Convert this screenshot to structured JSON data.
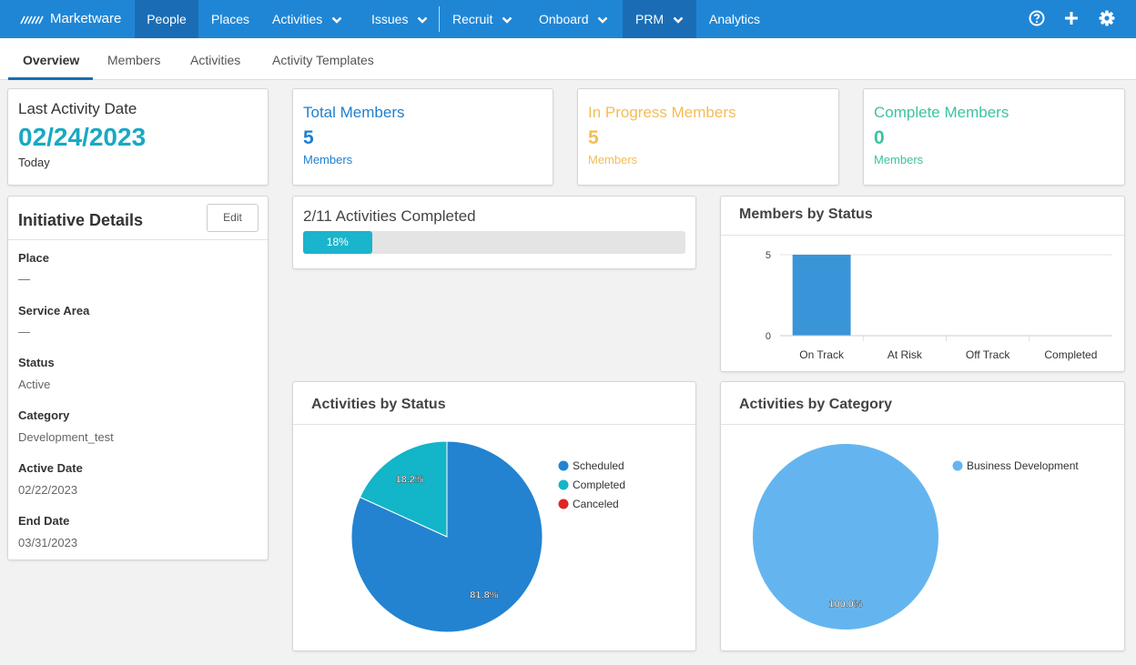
{
  "nav": {
    "logo": "Marketware",
    "items": [
      {
        "label": "People"
      },
      {
        "label": "Places"
      },
      {
        "label": "Activities"
      },
      {
        "label": "Issues"
      },
      {
        "label": "Recruit"
      },
      {
        "label": "Onboard"
      },
      {
        "label": "PRM"
      },
      {
        "label": "Analytics"
      }
    ],
    "icons": [
      "help-icon",
      "plus-icon",
      "gear-icon"
    ]
  },
  "tabs": [
    {
      "label": "Overview"
    },
    {
      "label": "Members"
    },
    {
      "label": "Activities"
    },
    {
      "label": "Activity Templates"
    }
  ],
  "last_activity": {
    "title": "Last Activity Date",
    "date": "02/24/2023",
    "sub": "Today"
  },
  "stats": [
    {
      "title": "Total Members",
      "value": "5",
      "sub": "Members",
      "color": "#1f7fcf"
    },
    {
      "title": "In Progress Members",
      "value": "5",
      "sub": "Members",
      "color": "#f5bc55"
    },
    {
      "title": "Complete Members",
      "value": "0",
      "sub": "Members",
      "color": "#3cc3a0"
    }
  ],
  "initiative": {
    "title": "Initiative Details",
    "edit_label": "Edit",
    "fields": [
      {
        "label": "Place",
        "value": "—"
      },
      {
        "label": "Service Area",
        "value": "—"
      },
      {
        "label": "Status",
        "value": "Active"
      },
      {
        "label": "Category",
        "value": "Development_test"
      },
      {
        "label": "Active Date",
        "value": "02/22/2023"
      },
      {
        "label": "End Date",
        "value": "03/31/2023"
      }
    ]
  },
  "progress": {
    "title": "2/11 Activities Completed",
    "label": "18%",
    "fraction": 0.18
  },
  "members_chart": {
    "title": "Members by Status"
  },
  "activities_status_chart": {
    "title": "Activities by Status"
  },
  "activities_category_chart": {
    "title": "Activities by Category"
  },
  "chart_data": [
    {
      "type": "bar",
      "title": "Members by Status",
      "categories": [
        "On Track",
        "At Risk",
        "Off Track",
        "Completed"
      ],
      "values": [
        5,
        0,
        0,
        0
      ],
      "ylim": [
        0,
        5
      ],
      "yticks": [
        "0",
        "5"
      ],
      "color": "#3a95d8"
    },
    {
      "type": "pie",
      "title": "Activities by Status",
      "labels": [
        "Scheduled",
        "Completed",
        "Canceled"
      ],
      "values": [
        81.8,
        18.2,
        0
      ],
      "value_labels": [
        "81.8%",
        "18.2%",
        ""
      ],
      "colors": [
        "#2383d1",
        "#13b5c8",
        "#e02424"
      ],
      "legend": "right"
    },
    {
      "type": "pie",
      "title": "Activities by Category",
      "labels": [
        "Business Development"
      ],
      "values": [
        100.0
      ],
      "value_labels": [
        "100.0%"
      ],
      "colors": [
        "#64b5ef"
      ],
      "legend": "right"
    }
  ]
}
